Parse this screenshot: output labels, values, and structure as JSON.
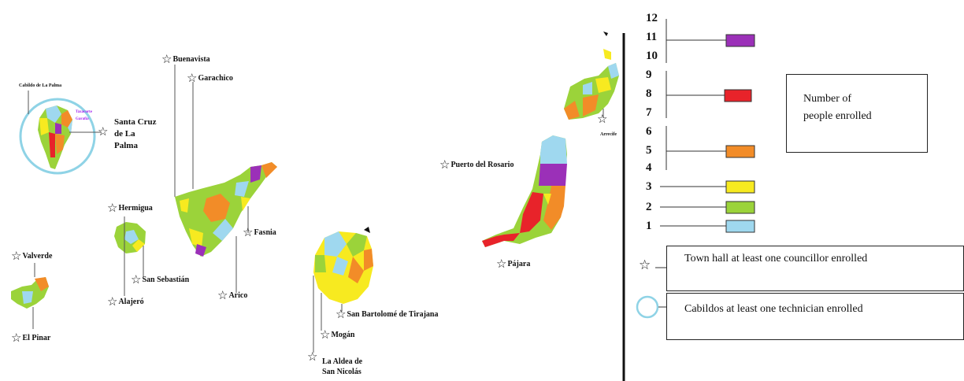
{
  "islands": {
    "la_palma": {
      "cabildo_label": "Cabildo de La Palma",
      "purple_lines": [
        "Tazacorte",
        "Garafía"
      ],
      "towns": [
        "Santa Cruz de La Palma"
      ]
    },
    "tenerife": {
      "towns": [
        "Buenavista",
        "Garachico",
        "Fasnia",
        "Arico"
      ]
    },
    "la_gomera": {
      "towns": [
        "Hermigua",
        "San Sebastián",
        "Alajeró"
      ]
    },
    "el_hierro": {
      "towns": [
        "Valverde",
        "El Pinar"
      ]
    },
    "gran_canaria": {
      "towns": [
        "San Bartolomé de Tirajana",
        "Mogán",
        "La Aldea de San Nicolás"
      ]
    },
    "fuerteventura": {
      "towns": [
        "Puerto del Rosario",
        "Pájara"
      ]
    },
    "lanzarote": {
      "towns": [
        "Arrecife"
      ]
    }
  },
  "labels": {
    "santa_cruz_1": "Santa Cruz",
    "santa_cruz_2": "de La",
    "santa_cruz_3": "Palma",
    "aldea_1": "La Aldea de",
    "aldea_2": "San Nicolás"
  },
  "legend": {
    "scale_numbers": [
      "12",
      "11",
      "10",
      "9",
      "8",
      "7",
      "6",
      "5",
      "4",
      "3",
      "2",
      "1"
    ],
    "title_lines": [
      "Number of",
      "people enrolled"
    ],
    "town_hall": "Town hall at least one councillor enrolled",
    "cabildos": "Cabildos at least one technician enrolled",
    "colors": {
      "11": "#9b30b8",
      "8": "#e8232a",
      "5": "#f28c28",
      "3": "#f7ea20",
      "2": "#9bd33a",
      "1": "#9fd8ef"
    }
  },
  "star_glyph": "☆"
}
